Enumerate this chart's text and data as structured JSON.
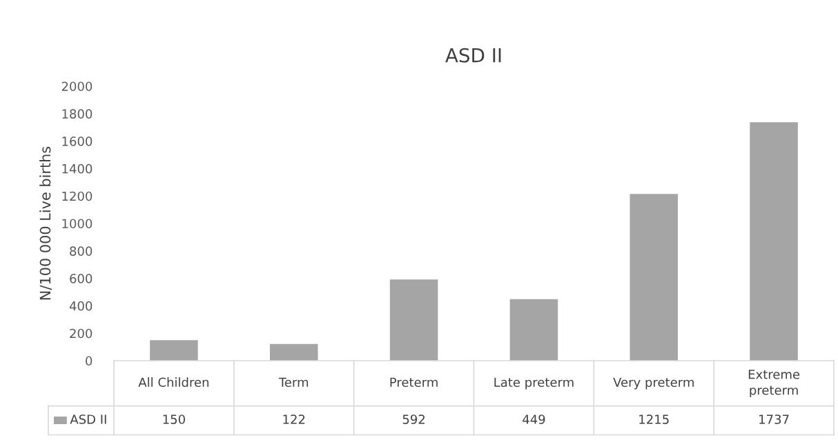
{
  "chart_data": {
    "type": "bar",
    "title": "ASD II",
    "ylabel": "N/100 000 Live births",
    "categories": [
      "All Children",
      "Term",
      "Preterm",
      "Late preterm",
      "Very preterm",
      "Extreme\npreterm"
    ],
    "series": [
      {
        "name": "ASD II",
        "color": "#a5a5a5",
        "values": [
          150,
          122,
          592,
          449,
          1215,
          1737
        ]
      }
    ],
    "ylim": [
      0,
      2000
    ],
    "yticks": [
      0,
      200,
      400,
      600,
      800,
      1000,
      1200,
      1400,
      1600,
      1800,
      2000
    ],
    "data_labels": true,
    "grid": false
  }
}
